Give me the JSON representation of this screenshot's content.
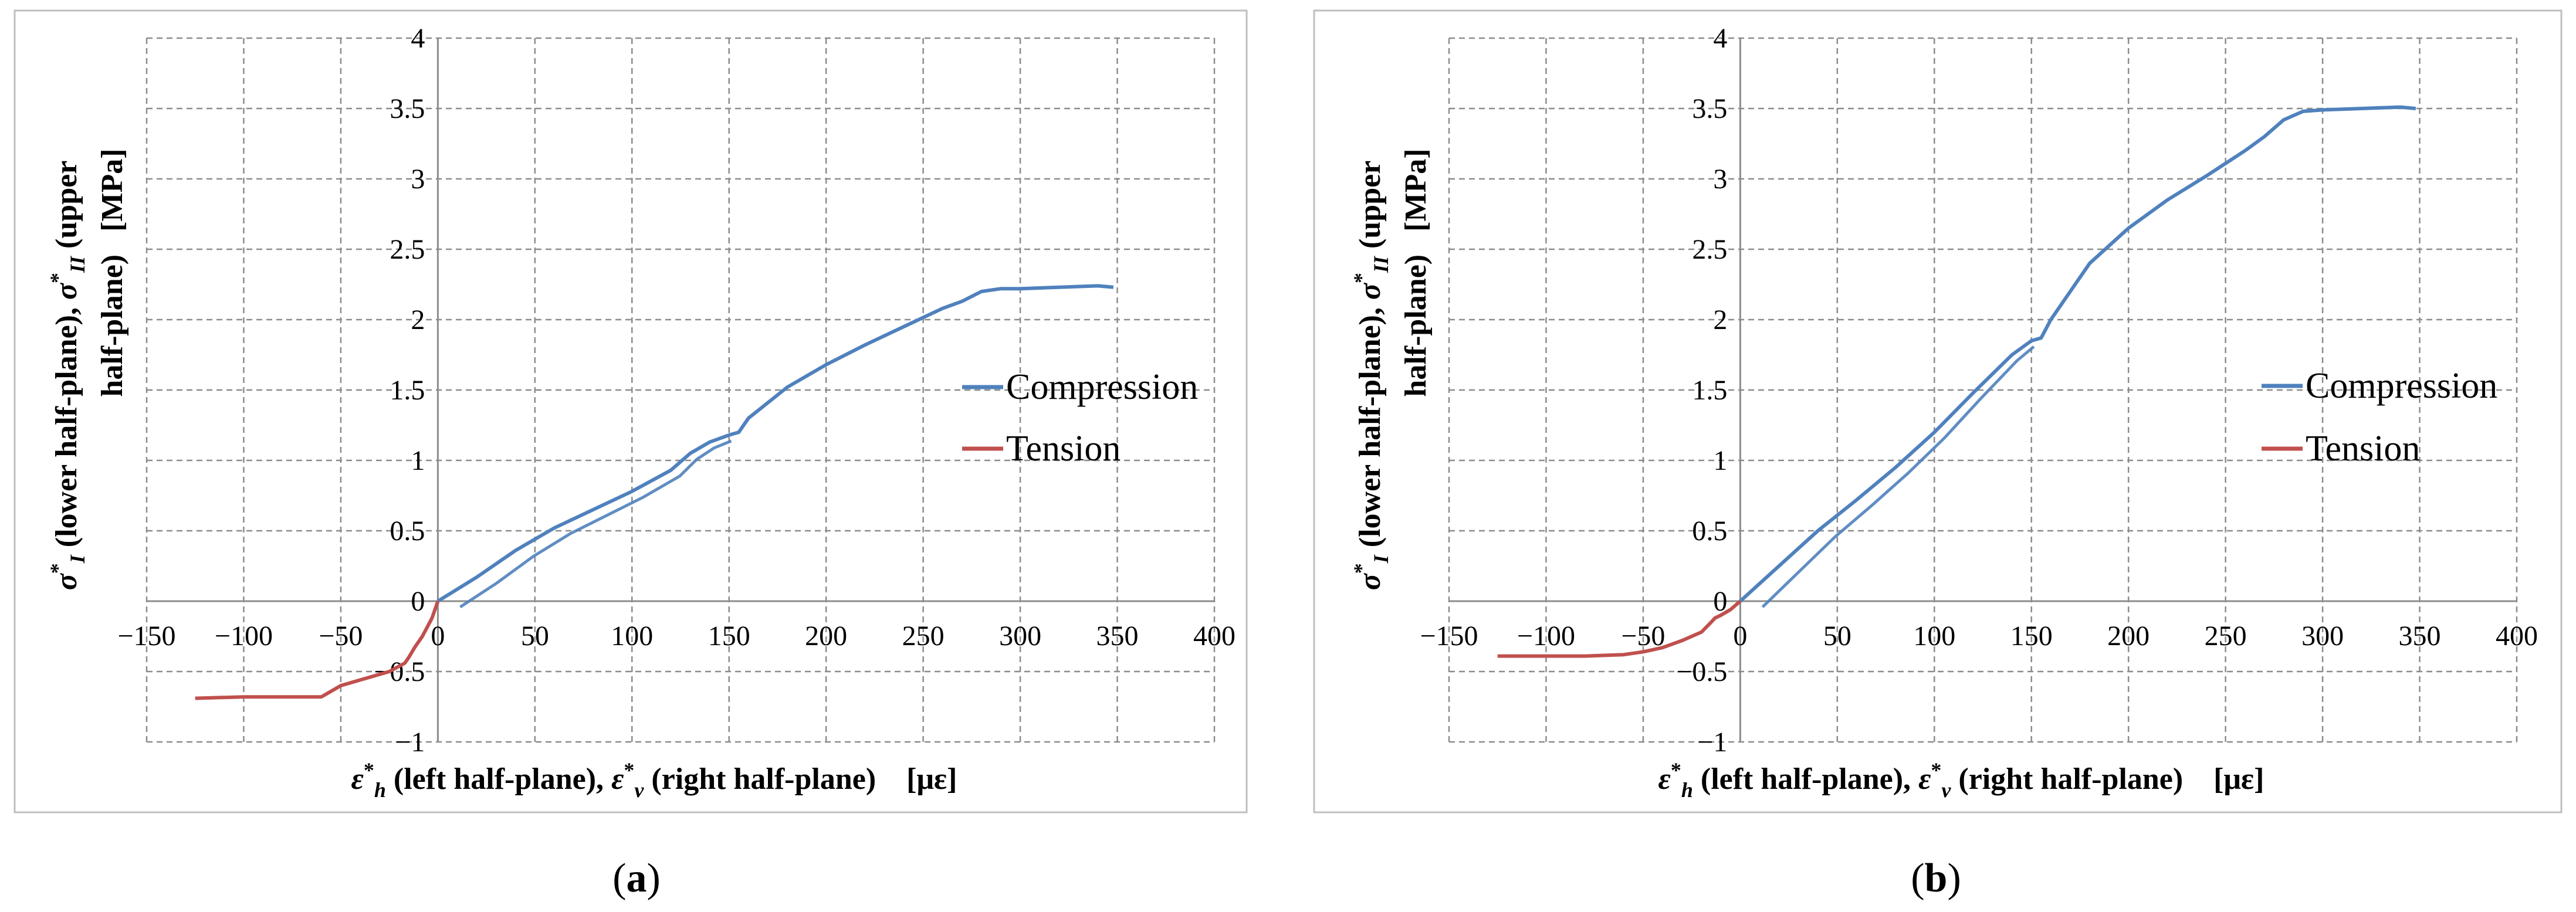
{
  "chart_data": [
    {
      "type": "line",
      "panel_label": "a",
      "xlabel": {
        "sym1": "ε",
        "sup1": "*",
        "sub1": "h",
        "text1": " (left half-plane), ",
        "sym2": "ε",
        "sup2": "*",
        "sub2": "v",
        "text2": " (right half-plane)",
        "unit": "[με]"
      },
      "ylabel": {
        "sym1": "σ",
        "sup1": "*",
        "sub1": "I",
        "text1": " (lower half-plane), ",
        "sym2": "σ",
        "sup2": "*",
        "sub2": "II",
        "text2": " (upper",
        "line2": "half-plane)",
        "unit": "[MPa]"
      },
      "xlim": [
        -150,
        400
      ],
      "ylim": [
        -1,
        4
      ],
      "x_ticks": [
        "-150",
        "-100",
        "-50",
        "0",
        "50",
        "100",
        "150",
        "200",
        "250",
        "300",
        "350",
        "400"
      ],
      "y_ticks": [
        "-1",
        "-0.5",
        "0",
        "0.5",
        "1",
        "1.5",
        "2",
        "2.5",
        "3",
        "3.5",
        "4"
      ],
      "legend_position": "right",
      "series": [
        {
          "name": "Compression",
          "color": "#4f81bd",
          "loops": true,
          "x": [
            0,
            20,
            40,
            60,
            80,
            100,
            120,
            130,
            140,
            150,
            155,
            160,
            180,
            200,
            220,
            240,
            260,
            270,
            280,
            290,
            300,
            320,
            340,
            348
          ],
          "y": [
            0,
            0.17,
            0.36,
            0.52,
            0.65,
            0.78,
            0.93,
            1.05,
            1.13,
            1.18,
            1.2,
            1.3,
            1.52,
            1.68,
            1.82,
            1.95,
            2.08,
            2.13,
            2.2,
            2.22,
            2.22,
            2.23,
            2.24,
            2.23
          ]
        },
        {
          "name": "Tension",
          "color": "#c0504d",
          "x": [
            0,
            -3,
            -8,
            -12,
            -15,
            -17,
            -25,
            -40,
            -50,
            -55,
            -60,
            -80,
            -100,
            -125
          ],
          "y": [
            0,
            -0.12,
            -0.25,
            -0.33,
            -0.4,
            -0.44,
            -0.5,
            -0.56,
            -0.6,
            -0.64,
            -0.68,
            -0.68,
            -0.68,
            -0.69
          ]
        }
      ]
    },
    {
      "type": "line",
      "panel_label": "b",
      "xlabel": {
        "sym1": "ε",
        "sup1": "*",
        "sub1": "h",
        "text1": " (left half-plane), ",
        "sym2": "ε",
        "sup2": "*",
        "sub2": "v",
        "text2": " (right half-plane)",
        "unit": "[με]"
      },
      "ylabel": {
        "sym1": "σ",
        "sup1": "*",
        "sub1": "I",
        "text1": " (lower half-plane), ",
        "sym2": "σ",
        "sup2": "*",
        "sub2": "II",
        "text2": " (upper",
        "line2": "half-plane)",
        "unit": "[MPa]"
      },
      "xlim": [
        -150,
        400
      ],
      "ylim": [
        -1,
        4
      ],
      "x_ticks": [
        "-150",
        "-100",
        "-50",
        "0",
        "50",
        "100",
        "150",
        "200",
        "250",
        "300",
        "350",
        "400"
      ],
      "y_ticks": [
        "-1",
        "-0.5",
        "0",
        "0.5",
        "1",
        "1.5",
        "2",
        "2.5",
        "3",
        "3.5",
        "4"
      ],
      "legend_position": "right",
      "series": [
        {
          "name": "Compression",
          "color": "#4f81bd",
          "loops": true,
          "x": [
            0,
            20,
            40,
            60,
            80,
            100,
            120,
            140,
            150,
            155,
            160,
            180,
            200,
            220,
            240,
            260,
            270,
            280,
            290,
            300,
            320,
            340,
            348
          ],
          "y": [
            0,
            0.25,
            0.5,
            0.72,
            0.95,
            1.2,
            1.48,
            1.75,
            1.85,
            1.87,
            2.0,
            2.4,
            2.65,
            2.85,
            3.02,
            3.2,
            3.3,
            3.42,
            3.48,
            3.49,
            3.5,
            3.51,
            3.5
          ]
        },
        {
          "name": "Tension",
          "color": "#c0504d",
          "x": [
            0,
            -5,
            -10,
            -13,
            -15,
            -20,
            -30,
            -40,
            -50,
            -60,
            -80,
            -100,
            -125
          ],
          "y": [
            0,
            -0.06,
            -0.1,
            -0.12,
            -0.15,
            -0.22,
            -0.28,
            -0.33,
            -0.36,
            -0.38,
            -0.39,
            -0.39,
            -0.39
          ]
        }
      ]
    }
  ]
}
